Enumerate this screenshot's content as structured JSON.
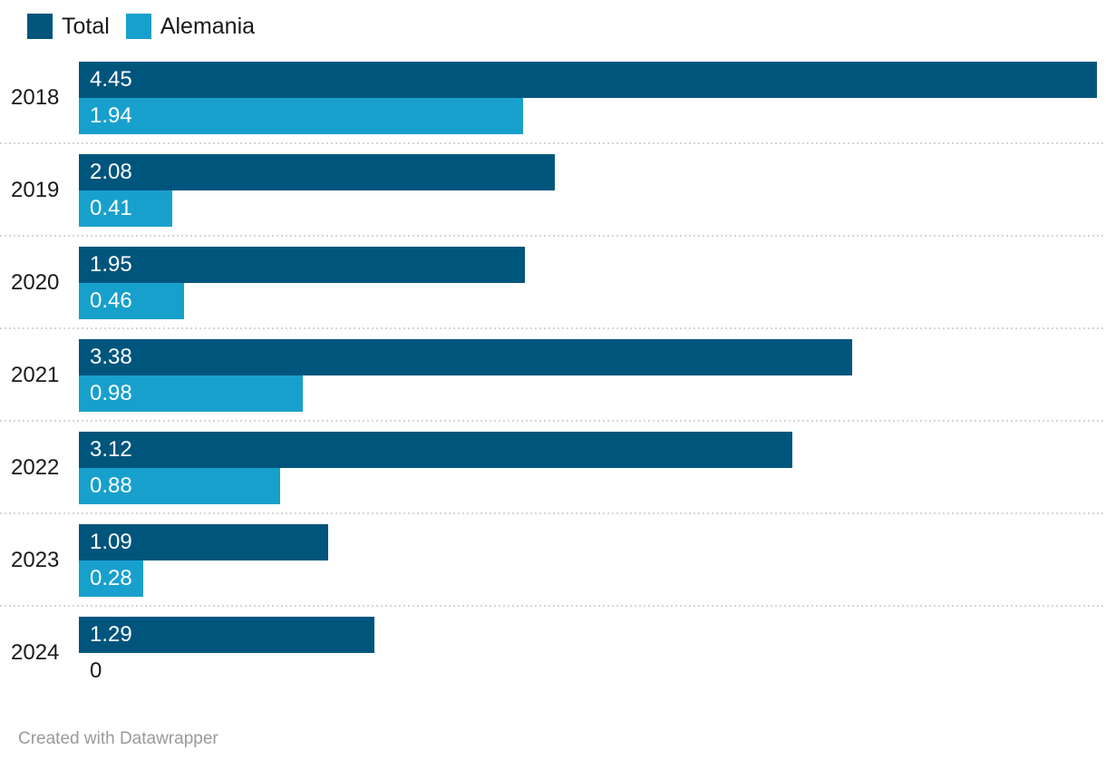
{
  "legend": {
    "items": [
      {
        "label": "Total",
        "color": "#00557d"
      },
      {
        "label": "Alemania",
        "color": "#18a0cd"
      }
    ]
  },
  "chart_data": {
    "type": "bar",
    "orientation": "horizontal",
    "title": "",
    "xlabel": "",
    "ylabel": "",
    "categories": [
      "2018",
      "2019",
      "2020",
      "2021",
      "2022",
      "2023",
      "2024"
    ],
    "series": [
      {
        "name": "Total",
        "color": "#00557d",
        "values": [
          4.45,
          2.08,
          1.95,
          3.38,
          3.12,
          1.09,
          1.29
        ]
      },
      {
        "name": "Alemania",
        "color": "#18a0cd",
        "values": [
          1.94,
          0.41,
          0.46,
          0.98,
          0.88,
          0.28,
          0
        ]
      }
    ],
    "value_labels": [
      [
        "4.45",
        "1.94"
      ],
      [
        "2.08",
        "0.41"
      ],
      [
        "1.95",
        "0.46"
      ],
      [
        "3.38",
        "0.98"
      ],
      [
        "3.12",
        "0.88"
      ],
      [
        "1.09",
        "0.28"
      ],
      [
        "1.29",
        "0"
      ]
    ],
    "xlim": [
      0,
      4.45
    ],
    "grid": false,
    "legend_position": "top-left",
    "row_separators": "dotted"
  },
  "footer": {
    "attribution": "Created with Datawrapper"
  }
}
